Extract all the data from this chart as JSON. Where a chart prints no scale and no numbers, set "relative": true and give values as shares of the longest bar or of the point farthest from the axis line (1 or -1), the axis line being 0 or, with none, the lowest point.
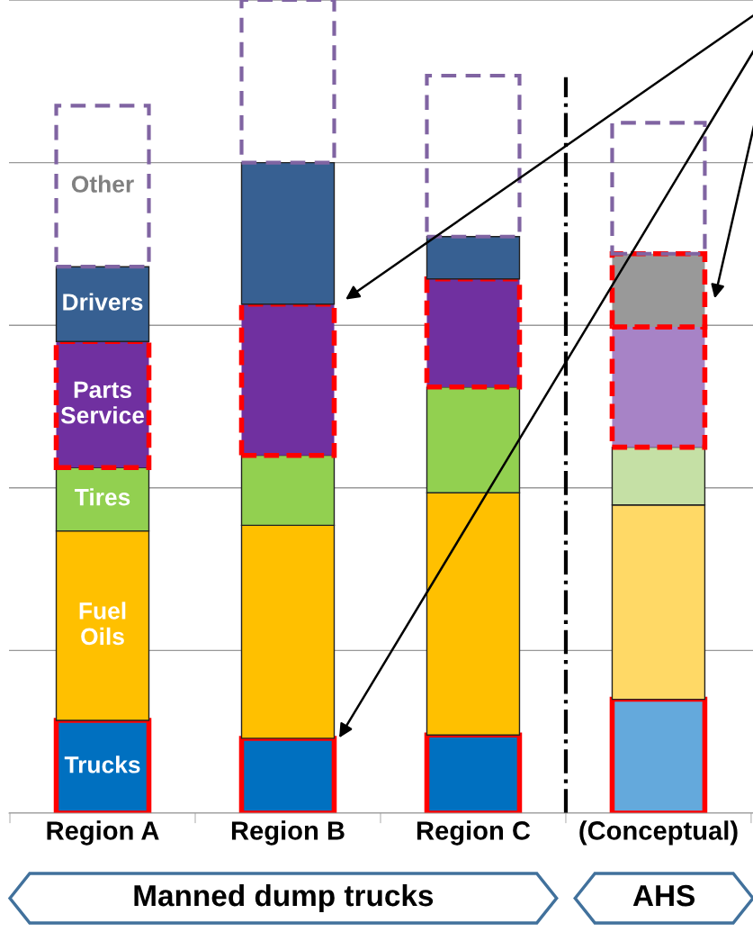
{
  "chart_data": {
    "type": "bar",
    "stacked": true,
    "relative": true,
    "grid": "y",
    "legend": false,
    "categories": [
      "Region A",
      "Region B",
      "Region C",
      "(Conceptual)"
    ],
    "series": [
      {
        "name": "Trucks",
        "color": "#0070c0",
        "colors": [
          "#0070c0",
          "#0070c0",
          "#0070c0",
          "#64a9dc"
        ],
        "line_style": "solid",
        "values": [
          0.114,
          0.092,
          0.096,
          0.14
        ]
      },
      {
        "name": "Fuel\nOils",
        "color": "#ffc000",
        "colors": [
          "#ffc000",
          "#ffc000",
          "#ffc000",
          "#ffd966"
        ],
        "values": [
          0.233,
          0.262,
          0.298,
          0.239
        ]
      },
      {
        "name": "Tires",
        "color": "#92d050",
        "colors": [
          "#92d050",
          "#92d050",
          "#92d050",
          "#c5e0a5"
        ],
        "values": [
          0.078,
          0.086,
          0.13,
          0.071
        ]
      },
      {
        "name": "Parts\nService",
        "color": "#7030a0",
        "colors": [
          "#7030a0",
          "#7030a0",
          "#7030a0",
          "#a783c6"
        ],
        "line_style": "dashed",
        "values": [
          0.155,
          0.186,
          0.133,
          0.148
        ]
      },
      {
        "name": "Drivers",
        "color": "#376092",
        "colors": [
          "#376092",
          "#376092",
          "#376092",
          "#999999"
        ],
        "line_style": [
          null,
          null,
          null,
          "dashed"
        ],
        "values": [
          0.092,
          0.174,
          0.052,
          0.09
        ]
      },
      {
        "name": "Other",
        "color": "#8064a2",
        "colors": [
          null,
          null,
          null,
          null
        ],
        "line_style": "dashed",
        "values": [
          0.198,
          0.2,
          0.198,
          0.161
        ]
      }
    ],
    "annotations": [
      "Manned dump trucks",
      "AHS"
    ]
  }
}
